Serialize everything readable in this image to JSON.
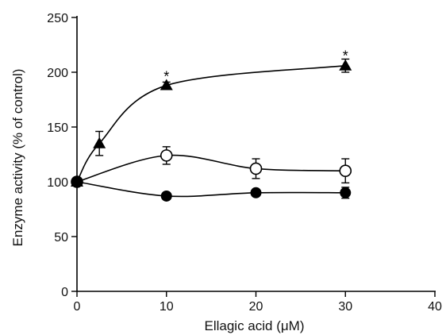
{
  "chart_data": {
    "type": "line",
    "xlabel": "Ellagic acid (μM)",
    "ylabel": "Enzyme activity (% of control)",
    "xlim": [
      0,
      40
    ],
    "ylim": [
      0,
      250
    ],
    "xticks": [
      "0",
      "10",
      "20",
      "30",
      "40"
    ],
    "yticks": [
      "0",
      "50",
      "100",
      "150",
      "200",
      "250"
    ],
    "grid": false,
    "series": [
      {
        "marker": "triangle-filled",
        "points": [
          {
            "x": 0,
            "y": 100,
            "err": 0
          },
          {
            "x": 2.5,
            "y": 135,
            "err": 11
          },
          {
            "x": 10,
            "y": 188,
            "err": 3
          },
          {
            "x": 30,
            "y": 206,
            "err": 6
          }
        ]
      },
      {
        "marker": "circle-open",
        "points": [
          {
            "x": 0,
            "y": 100,
            "err": 0
          },
          {
            "x": 10,
            "y": 124,
            "err": 8
          },
          {
            "x": 20,
            "y": 112,
            "err": 9
          },
          {
            "x": 30,
            "y": 110,
            "err": 11
          }
        ]
      },
      {
        "marker": "circle-filled",
        "points": [
          {
            "x": 0,
            "y": 100,
            "err": 0
          },
          {
            "x": 10,
            "y": 87,
            "err": 3
          },
          {
            "x": 20,
            "y": 90,
            "err": 3
          },
          {
            "x": 30,
            "y": 90,
            "err": 5
          }
        ]
      }
    ],
    "annotations": [
      {
        "text": "*",
        "x": 10,
        "y": 196
      },
      {
        "text": "*",
        "x": 30,
        "y": 215
      }
    ]
  }
}
